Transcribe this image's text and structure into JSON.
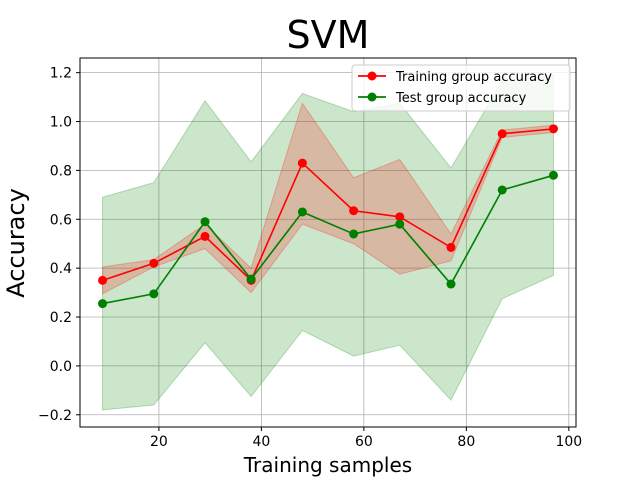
{
  "chart_data": {
    "type": "line",
    "title": "SVM",
    "xlabel": "Training samples",
    "ylabel": "Accuracy",
    "xlim": [
      4.6,
      101.4
    ],
    "ylim": [
      -0.25,
      1.26
    ],
    "xticks": [
      20,
      40,
      60,
      80,
      100
    ],
    "yticks": [
      -0.2,
      0.0,
      0.2,
      0.4,
      0.6,
      0.8,
      1.0,
      1.2
    ],
    "xtick_labels": [
      "20",
      "40",
      "60",
      "80",
      "100"
    ],
    "ytick_labels": [
      "−0.2",
      "0.0",
      "0.2",
      "0.4",
      "0.6",
      "0.8",
      "1.0",
      "1.2"
    ],
    "grid": true,
    "legend_position": "top-right",
    "x": [
      9,
      19,
      29,
      38,
      48,
      58,
      67,
      77,
      87,
      97
    ],
    "series": [
      {
        "name": "Training group accuracy",
        "color": "#ff0000",
        "band_color": "#ff0000",
        "values": [
          0.35,
          0.42,
          0.53,
          0.35,
          0.83,
          0.635,
          0.61,
          0.485,
          0.95,
          0.97
        ],
        "band_lower": [
          0.295,
          0.405,
          0.48,
          0.3,
          0.58,
          0.5,
          0.375,
          0.43,
          0.935,
          0.955
        ],
        "band_upper": [
          0.405,
          0.435,
          0.58,
          0.4,
          1.075,
          0.77,
          0.845,
          0.54,
          0.965,
          0.985
        ]
      },
      {
        "name": "Test group accuracy",
        "color": "#008000",
        "band_color": "#008000",
        "values": [
          0.255,
          0.295,
          0.59,
          0.355,
          0.63,
          0.54,
          0.58,
          0.335,
          0.72,
          0.78
        ],
        "band_lower": [
          -0.18,
          -0.16,
          0.095,
          -0.125,
          0.145,
          0.04,
          0.085,
          -0.14,
          0.275,
          0.37
        ],
        "band_upper": [
          0.69,
          0.75,
          1.085,
          0.835,
          1.115,
          1.04,
          1.075,
          0.81,
          1.165,
          1.19
        ]
      }
    ]
  }
}
